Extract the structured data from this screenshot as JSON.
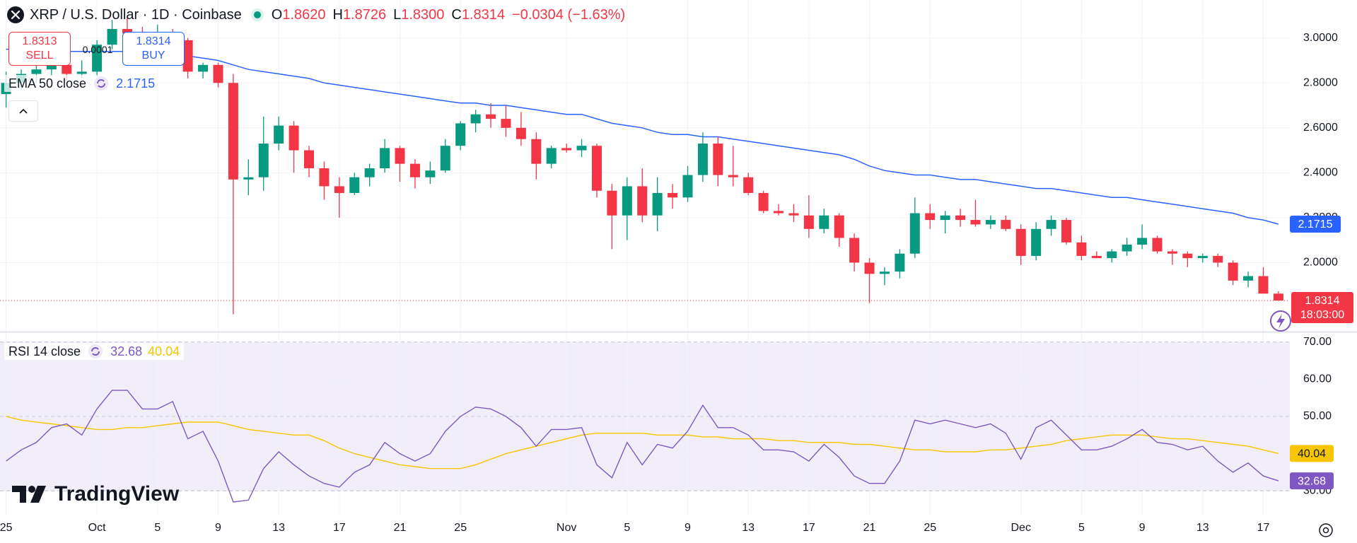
{
  "chart_data": {
    "type": "candlestick",
    "title": "XRP / U.S. Dollar · 1D · Coinbase",
    "header_items": [
      {
        "key": "O",
        "text": "1.8620"
      },
      {
        "key": "H",
        "text": "1.8726"
      },
      {
        "key": "L",
        "text": "1.8300"
      },
      {
        "key": "C",
        "text": "1.8314"
      }
    ],
    "change_text": "−0.0304 (−1.63%)",
    "categories": [
      "25",
      null,
      null,
      null,
      null,
      null,
      "Oct",
      null,
      null,
      null,
      "5",
      null,
      null,
      null,
      "9",
      null,
      null,
      null,
      "13",
      null,
      null,
      null,
      "17",
      null,
      null,
      null,
      "21",
      null,
      null,
      null,
      "25",
      null,
      null,
      null,
      null,
      null,
      null,
      "Nov",
      null,
      null,
      null,
      "5",
      null,
      null,
      null,
      "9",
      null,
      null,
      null,
      "13",
      null,
      null,
      null,
      "17",
      null,
      null,
      null,
      "21",
      null,
      null,
      null,
      "25",
      null,
      null,
      null,
      null,
      null,
      "Dec",
      null,
      null,
      null,
      "5",
      null,
      null,
      null,
      "9",
      null,
      null,
      null,
      "13",
      null,
      null,
      null,
      "17",
      null
    ],
    "open": [
      2.75,
      2.8,
      2.84,
      2.86,
      2.88,
      2.84,
      2.85,
      2.97,
      3.04,
      3.02,
      2.97,
      3.0,
      2.99,
      2.85,
      2.88,
      2.8,
      2.37,
      2.38,
      2.53,
      2.61,
      2.5,
      2.42,
      2.34,
      2.31,
      2.38,
      2.42,
      2.51,
      2.44,
      2.38,
      2.41,
      2.52,
      2.62,
      2.66,
      2.64,
      2.6,
      2.55,
      2.44,
      2.51,
      2.5,
      2.52,
      2.32,
      2.21,
      2.34,
      2.21,
      2.31,
      2.29,
      2.39,
      2.53,
      2.39,
      2.38,
      2.31,
      2.23,
      2.22,
      2.21,
      2.15,
      2.21,
      2.11,
      2.0,
      1.95,
      1.96,
      2.04,
      2.22,
      2.19,
      2.21,
      2.19,
      2.17,
      2.19,
      2.15,
      2.03,
      2.15,
      2.19,
      2.09,
      2.03,
      2.02,
      2.05,
      2.08,
      2.11,
      2.05,
      2.04,
      2.02,
      2.03,
      2.0,
      1.92,
      1.94,
      1.862
    ],
    "high": [
      2.85,
      2.86,
      2.88,
      2.9,
      2.92,
      2.9,
      2.99,
      3.08,
      3.1,
      3.05,
      3.06,
      3.04,
      3.0,
      2.89,
      2.89,
      2.84,
      2.46,
      2.65,
      2.65,
      2.63,
      2.52,
      2.45,
      2.38,
      2.4,
      2.44,
      2.55,
      2.52,
      2.46,
      2.45,
      2.55,
      2.63,
      2.68,
      2.71,
      2.7,
      2.67,
      2.58,
      2.52,
      2.53,
      2.55,
      2.53,
      2.35,
      2.38,
      2.42,
      2.38,
      2.35,
      2.43,
      2.58,
      2.56,
      2.52,
      2.4,
      2.32,
      2.26,
      2.26,
      2.3,
      2.24,
      2.22,
      2.13,
      2.02,
      1.98,
      2.06,
      2.29,
      2.26,
      2.23,
      2.24,
      2.28,
      2.21,
      2.21,
      2.17,
      2.18,
      2.21,
      2.2,
      2.12,
      2.05,
      2.06,
      2.11,
      2.17,
      2.12,
      2.06,
      2.05,
      2.04,
      2.04,
      2.01,
      1.96,
      1.98,
      1.8726
    ],
    "low": [
      2.69,
      2.77,
      2.8,
      2.83,
      2.81,
      2.82,
      2.83,
      2.95,
      2.98,
      2.95,
      2.95,
      2.9,
      2.82,
      2.82,
      2.78,
      1.77,
      2.3,
      2.32,
      2.5,
      2.4,
      2.38,
      2.28,
      2.2,
      2.3,
      2.34,
      2.4,
      2.36,
      2.33,
      2.35,
      2.4,
      2.5,
      2.58,
      2.6,
      2.56,
      2.52,
      2.37,
      2.42,
      2.49,
      2.47,
      2.29,
      2.06,
      2.1,
      2.18,
      2.14,
      2.24,
      2.27,
      2.36,
      2.34,
      2.34,
      2.3,
      2.22,
      2.21,
      2.18,
      2.11,
      2.13,
      2.07,
      1.96,
      1.82,
      1.9,
      1.93,
      2.02,
      2.15,
      2.13,
      2.16,
      2.16,
      2.15,
      2.14,
      1.99,
      2.01,
      2.12,
      2.08,
      2.01,
      2.02,
      2.0,
      2.03,
      2.06,
      2.04,
      1.99,
      1.98,
      2.0,
      1.98,
      1.9,
      1.89,
      1.87,
      1.83
    ],
    "close": [
      2.8,
      2.84,
      2.86,
      2.88,
      2.84,
      2.85,
      2.97,
      3.04,
      3.02,
      2.97,
      3.0,
      2.99,
      2.85,
      2.88,
      2.8,
      2.37,
      2.38,
      2.53,
      2.61,
      2.5,
      2.42,
      2.34,
      2.31,
      2.38,
      2.42,
      2.51,
      2.44,
      2.38,
      2.41,
      2.52,
      2.62,
      2.66,
      2.64,
      2.6,
      2.55,
      2.44,
      2.51,
      2.5,
      2.52,
      2.32,
      2.21,
      2.34,
      2.21,
      2.31,
      2.29,
      2.39,
      2.53,
      2.39,
      2.38,
      2.31,
      2.23,
      2.22,
      2.21,
      2.15,
      2.21,
      2.11,
      2.0,
      1.95,
      1.96,
      2.04,
      2.22,
      2.19,
      2.21,
      2.19,
      2.17,
      2.19,
      2.15,
      2.03,
      2.15,
      2.19,
      2.09,
      2.03,
      2.02,
      2.05,
      2.08,
      2.11,
      2.05,
      2.04,
      2.02,
      2.03,
      2.0,
      1.92,
      1.94,
      1.862,
      1.8314
    ],
    "up_color": "#089981",
    "down_color": "#f23645",
    "countdown": "18:03:00",
    "ylim": [
      1.693,
      3.169
    ],
    "yticks": [
      {
        "value": 2.0,
        "label": "2.0000"
      },
      {
        "value": 2.2,
        "label": "2.2000"
      },
      {
        "value": 2.4,
        "label": "2.4000"
      },
      {
        "value": 2.6,
        "label": "2.6000"
      },
      {
        "value": 2.8,
        "label": "2.8000"
      },
      {
        "value": 3.0,
        "label": "3.0000"
      }
    ],
    "grid": true,
    "ema": {
      "name": "EMA 50 close",
      "color": "#2962ff",
      "values": [
        2.95,
        2.95,
        2.95,
        2.95,
        2.94,
        2.94,
        2.94,
        2.94,
        2.94,
        2.94,
        2.93,
        2.93,
        2.92,
        2.91,
        2.9,
        2.88,
        2.86,
        2.85,
        2.84,
        2.83,
        2.82,
        2.8,
        2.79,
        2.78,
        2.77,
        2.76,
        2.75,
        2.74,
        2.73,
        2.72,
        2.71,
        2.71,
        2.7,
        2.7,
        2.69,
        2.68,
        2.67,
        2.66,
        2.66,
        2.64,
        2.62,
        2.61,
        2.6,
        2.58,
        2.57,
        2.57,
        2.56,
        2.56,
        2.55,
        2.54,
        2.53,
        2.52,
        2.51,
        2.5,
        2.49,
        2.48,
        2.46,
        2.43,
        2.41,
        2.4,
        2.39,
        2.39,
        2.38,
        2.37,
        2.37,
        2.36,
        2.35,
        2.34,
        2.33,
        2.33,
        2.32,
        2.31,
        2.3,
        2.29,
        2.29,
        2.28,
        2.27,
        2.26,
        2.25,
        2.24,
        2.23,
        2.22,
        2.2,
        2.19,
        2.1715
      ]
    },
    "rsi": {
      "name": "RSI 14 close",
      "color": "#7e57c2",
      "values": [
        38,
        41,
        43,
        47,
        48,
        45,
        52,
        57,
        57,
        52,
        52,
        54,
        44,
        46,
        38,
        27,
        27.5,
        36,
        40.5,
        37,
        34,
        32,
        31,
        35,
        37,
        43,
        40,
        38,
        40,
        46,
        50,
        52.5,
        52,
        50,
        47,
        42,
        46.5,
        46.5,
        47,
        37,
        33.5,
        43,
        37,
        42.5,
        41.5,
        46,
        53,
        47,
        47,
        45,
        41,
        41,
        40.5,
        38,
        42.5,
        39,
        34,
        32,
        32,
        38,
        49,
        48,
        49,
        48,
        47,
        48,
        45.5,
        38.5,
        47,
        49,
        45,
        41,
        41,
        42,
        44,
        46.5,
        43,
        42.5,
        41,
        42,
        38,
        35,
        37.5,
        34,
        32.68
      ],
      "ma_color": "#f7c600",
      "ma_values": [
        50,
        49,
        48.5,
        48,
        47.5,
        47,
        46.5,
        46.5,
        47,
        47,
        47.5,
        48,
        48.5,
        48.5,
        48.5,
        47.5,
        46.5,
        46,
        45.5,
        45,
        45,
        43.5,
        41.5,
        40,
        39,
        38,
        37,
        36.5,
        36,
        36,
        36,
        37,
        38.5,
        40,
        41,
        42,
        43,
        44,
        45,
        45.5,
        45.5,
        45.5,
        45.5,
        45,
        45,
        45,
        44.5,
        44.5,
        44,
        44,
        44,
        43.5,
        43.5,
        43,
        43,
        43,
        42.5,
        42.5,
        42,
        41.5,
        41,
        41,
        40.5,
        40.5,
        40.5,
        41,
        41,
        41.5,
        42,
        42.5,
        43.5,
        44,
        44.5,
        45,
        45,
        45,
        44.5,
        44,
        44,
        43.5,
        43,
        42.5,
        42,
        41,
        40.04
      ],
      "ylim": [
        23.4,
        72.6
      ],
      "yticks": [
        {
          "value": 30,
          "label": "30.00"
        },
        {
          "value": 40,
          "label": "40.00"
        },
        {
          "value": 50,
          "label": "50.00"
        },
        {
          "value": 60,
          "label": "60.00"
        },
        {
          "value": 70,
          "label": "70.00"
        }
      ],
      "levels": [
        70,
        50,
        30
      ]
    }
  },
  "trade_widget": {
    "sell_price": "1.8313",
    "sell_label": "SELL",
    "spread": "0.0001",
    "buy_price": "1.8314",
    "buy_label": "BUY"
  },
  "watermark": "TradingView"
}
